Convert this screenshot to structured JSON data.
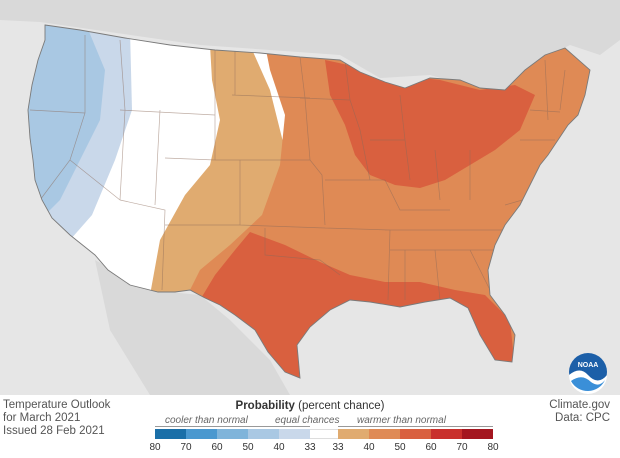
{
  "caption": {
    "title": "Temperature Outlook",
    "period": "for March 2021",
    "issued": "Issued 28 Feb 2021"
  },
  "credit": {
    "site": "Climate.gov",
    "source": "Data: CPC",
    "logo_text": "NOAA"
  },
  "legend": {
    "title_bold": "Probability",
    "title_rest": " (percent chance)",
    "cooler_label": "cooler than normal",
    "equal_label": "equal chances",
    "warmer_label": "warmer than normal",
    "cool_ticks": [
      "80",
      "70",
      "60",
      "50",
      "40",
      "33"
    ],
    "warm_ticks": [
      "33",
      "40",
      "50",
      "60",
      "70",
      "80"
    ],
    "cool_colors": [
      "#1a6fa8",
      "#4a98cf",
      "#7fb4da",
      "#a9c8e3",
      "#c9d8ea"
    ],
    "warm_colors": [
      "#e0ab70",
      "#df8a55",
      "#d9603f",
      "#c9302c",
      "#a4161f"
    ]
  },
  "colors": {
    "background": "#e6e6e6",
    "land": "#d8d8d8",
    "equal_chances": "#ffffff",
    "cool_33_40": "#c9d8ea",
    "cool_40_50": "#a9c8e3",
    "warm_33_40": "#e0ab70",
    "warm_40_50": "#df8a55",
    "warm_50_60": "#d9603f"
  }
}
